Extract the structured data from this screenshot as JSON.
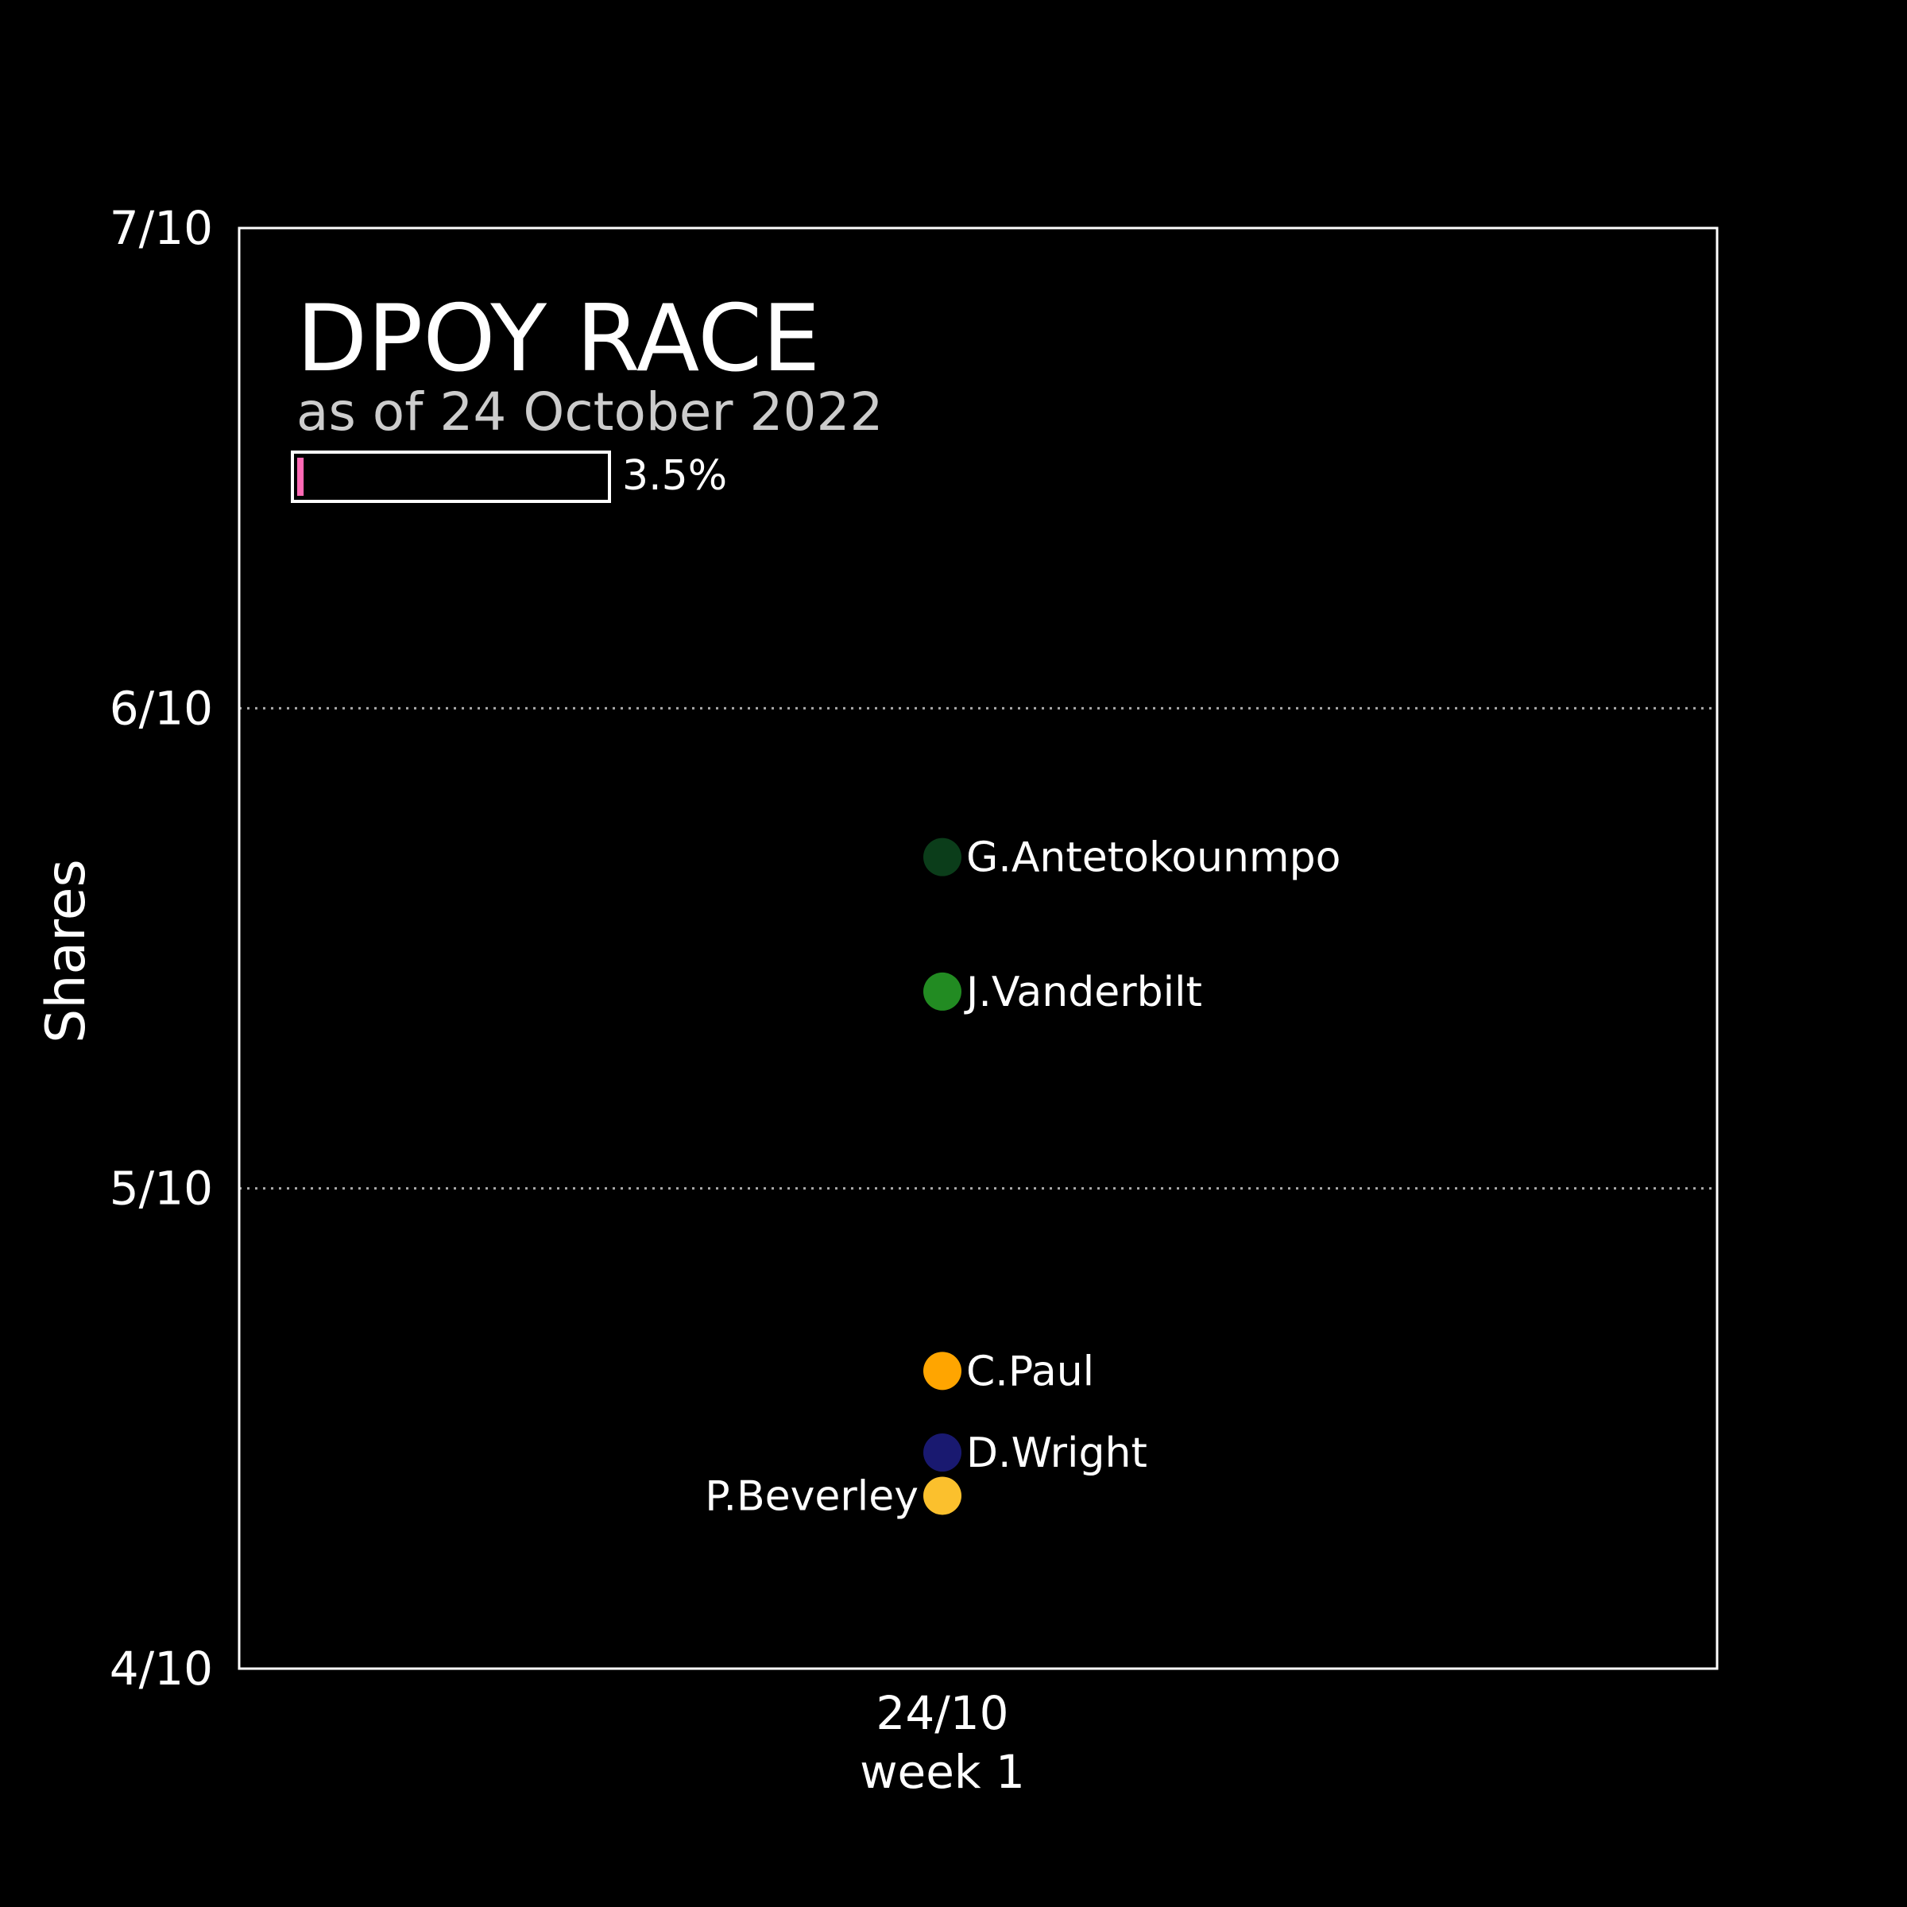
{
  "chart_data": {
    "type": "scatter",
    "title": "DPOY RACE",
    "subtitle": "as of 24 October 2022",
    "progress": {
      "value": 3.5,
      "label": "3.5%"
    },
    "ylabel": "Shares",
    "ylim": [
      0.4,
      0.7
    ],
    "yticks": [
      {
        "value": 0.4,
        "label": "4/10"
      },
      {
        "value": 0.5,
        "label": "5/10"
      },
      {
        "value": 0.6,
        "label": "6/10"
      },
      {
        "value": 0.7,
        "label": "7/10"
      }
    ],
    "xticks": [
      {
        "label": "24/10",
        "sublabel": "week 1"
      }
    ],
    "grid": {
      "y": true,
      "style": "dotted"
    },
    "series": [
      {
        "name": "G.Antetokounmpo",
        "x": "24/10",
        "y": 0.569,
        "color": "#0b3d1a",
        "label_side": "right"
      },
      {
        "name": "J.Vanderbilt",
        "x": "24/10",
        "y": 0.541,
        "color": "#228b22",
        "label_side": "right"
      },
      {
        "name": "C.Paul",
        "x": "24/10",
        "y": 0.462,
        "color": "#ffa500",
        "label_side": "right"
      },
      {
        "name": "D.Wright",
        "x": "24/10",
        "y": 0.445,
        "color": "#191970",
        "label_side": "right"
      },
      {
        "name": "P.Beverley",
        "x": "24/10",
        "y": 0.436,
        "color": "#fbc02d",
        "label_side": "left"
      }
    ],
    "colors": {
      "background": "#000000",
      "frame": "#ffffff",
      "subtitle": "#cccccc",
      "progress_fill": "#ff69b4",
      "grid": "#aaaaaa"
    }
  }
}
